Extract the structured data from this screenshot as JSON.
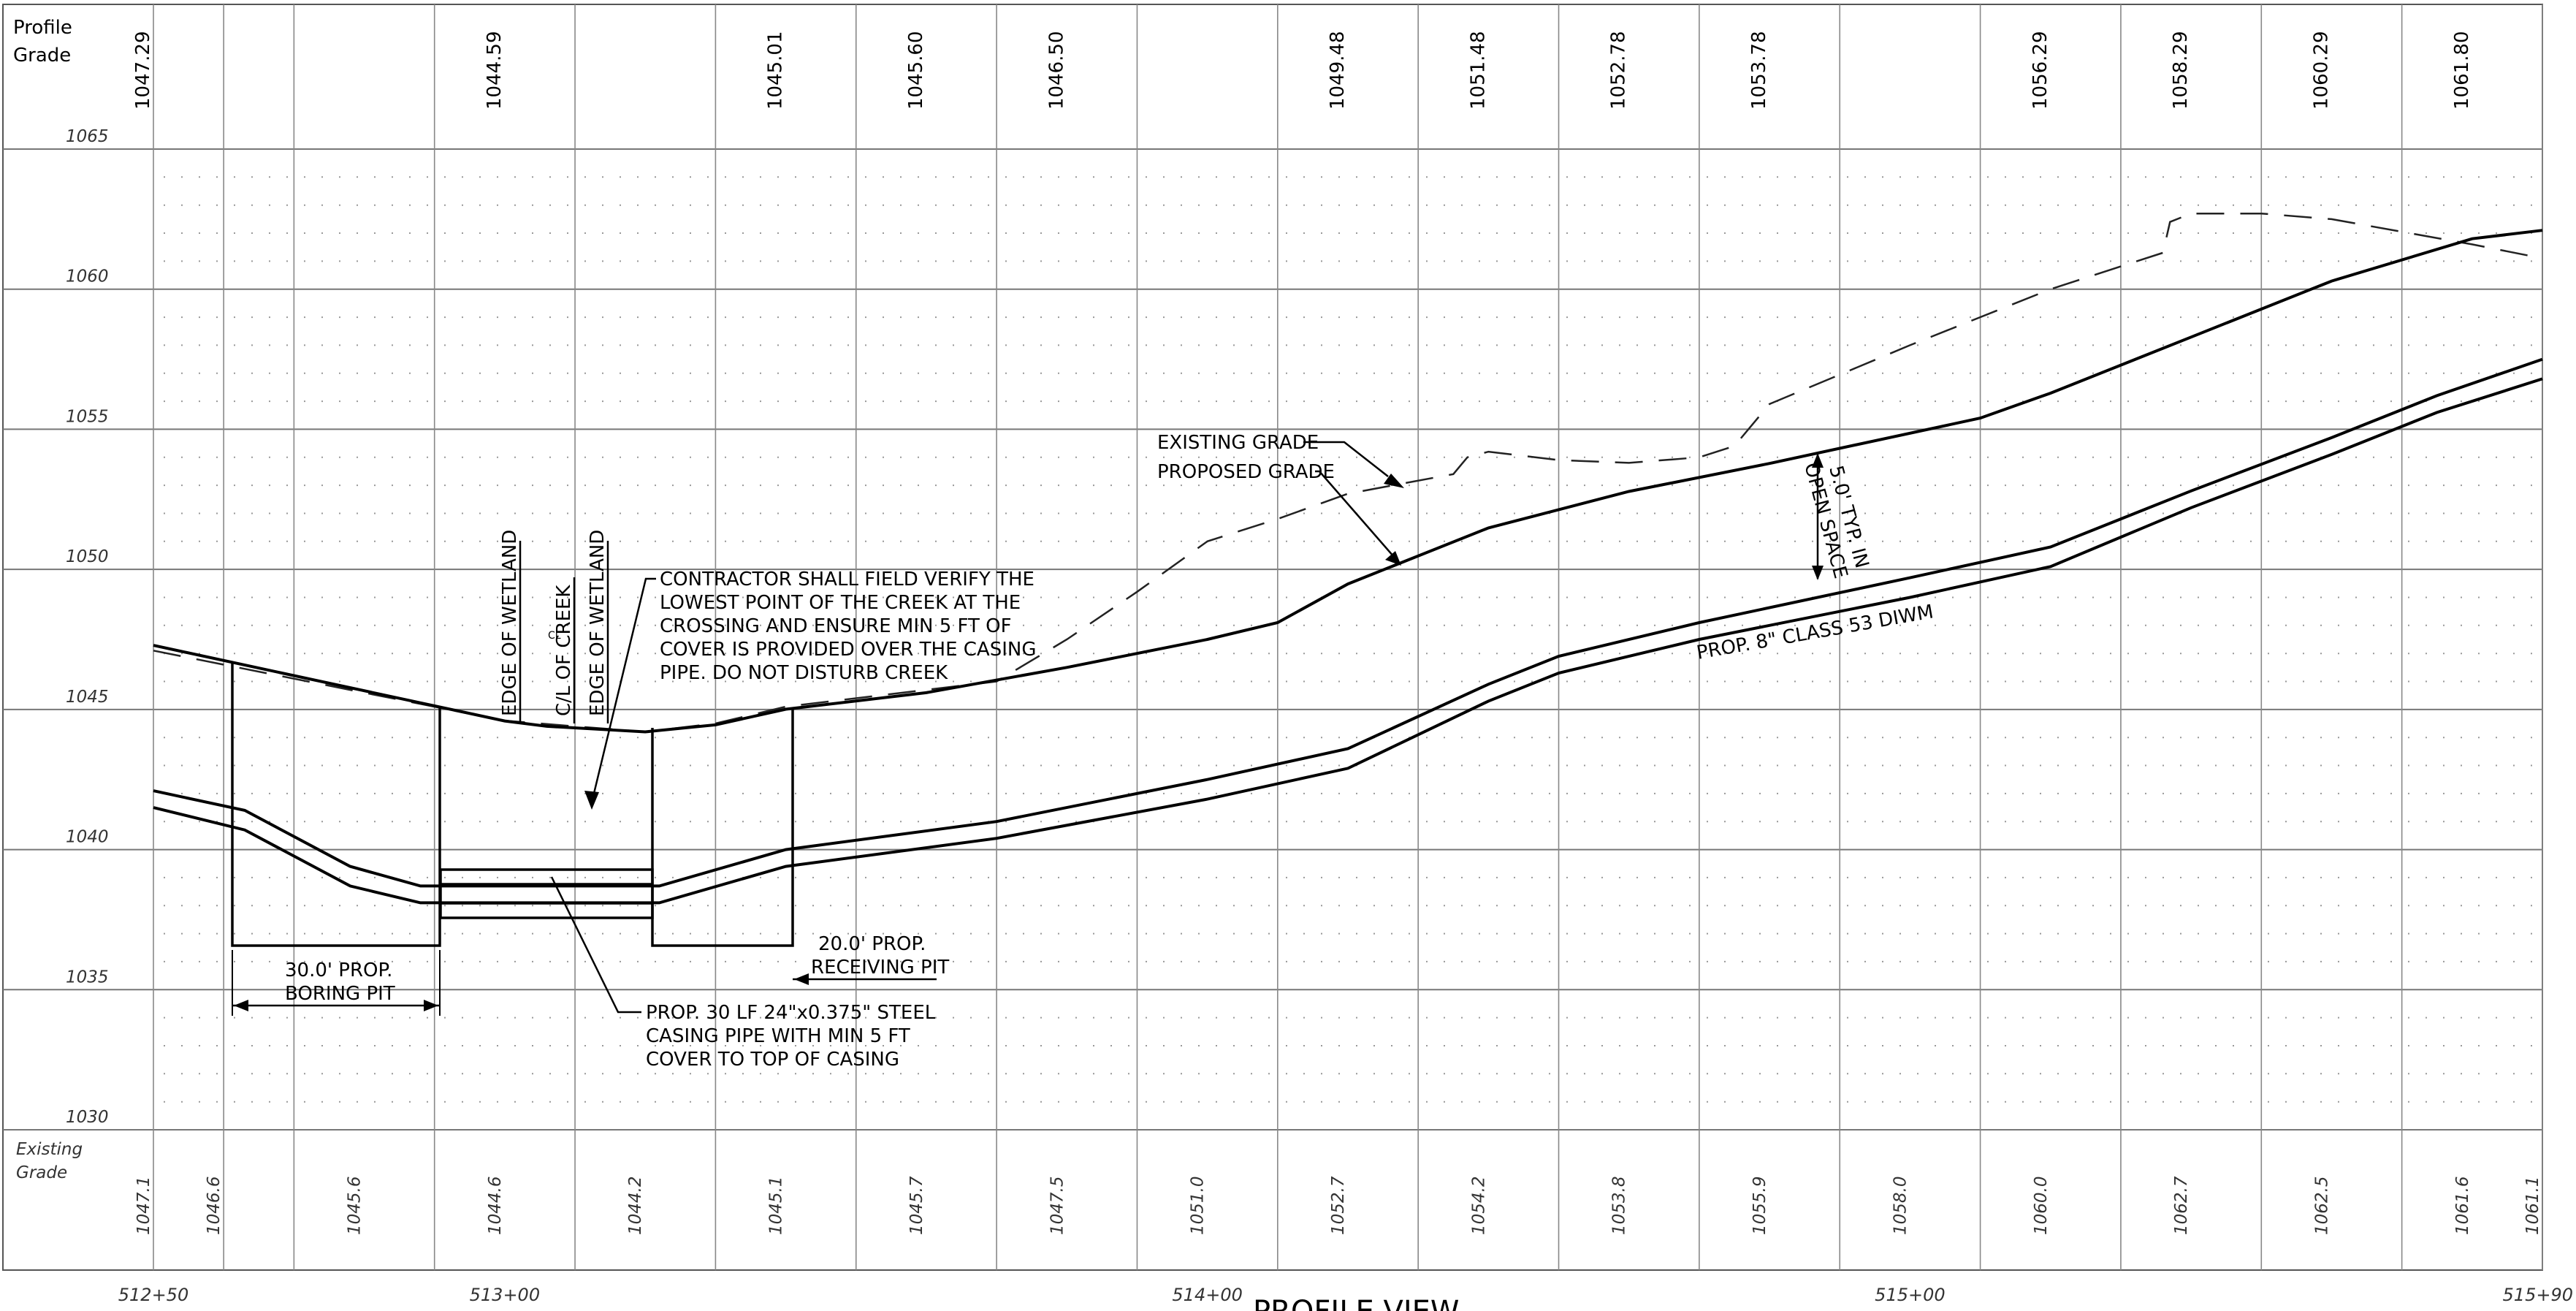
{
  "labels": {
    "profile_grade": [
      "Profile",
      "Grade"
    ],
    "existing_grade": [
      "Existing",
      "Grade"
    ],
    "view_title": "PROFILE VIEW"
  },
  "elevation_axis": {
    "ticks": [
      "1065",
      "1060",
      "1055",
      "1050",
      "1045",
      "1040",
      "1035",
      "1030"
    ],
    "range": [
      1030,
      1065
    ],
    "interval": 5
  },
  "stations": {
    "labels": [
      "512+50",
      "513+00",
      "514+00",
      "515+00",
      "515+90"
    ],
    "values": [
      51250,
      51300,
      51400,
      51500,
      51590
    ],
    "range": [
      51250,
      51590
    ]
  },
  "profile_grade_values": [
    {
      "station": 51250,
      "value": "1047.29"
    },
    {
      "station": 51300,
      "value": "1044.59"
    },
    {
      "station": 51340,
      "value": "1045.01"
    },
    {
      "station": 51360,
      "value": "1045.60"
    },
    {
      "station": 51380,
      "value": "1046.50"
    },
    {
      "station": 51420,
      "value": "1049.48"
    },
    {
      "station": 51440,
      "value": "1051.48"
    },
    {
      "station": 51460,
      "value": "1052.78"
    },
    {
      "station": 51480,
      "value": "1053.78"
    },
    {
      "station": 51520,
      "value": "1056.29"
    },
    {
      "station": 51540,
      "value": "1058.29"
    },
    {
      "station": 51560,
      "value": "1060.29"
    },
    {
      "station": 51580,
      "value": "1061.80"
    }
  ],
  "existing_grade_values": [
    {
      "station": 51250,
      "value": "1047.1"
    },
    {
      "station": 51260,
      "value": "1046.6"
    },
    {
      "station": 51280,
      "value": "1045.6"
    },
    {
      "station": 51300,
      "value": "1044.6"
    },
    {
      "station": 51320,
      "value": "1044.2"
    },
    {
      "station": 51340,
      "value": "1045.1"
    },
    {
      "station": 51360,
      "value": "1045.7"
    },
    {
      "station": 51380,
      "value": "1047.5"
    },
    {
      "station": 51400,
      "value": "1051.0"
    },
    {
      "station": 51420,
      "value": "1052.7"
    },
    {
      "station": 51440,
      "value": "1054.2"
    },
    {
      "station": 51460,
      "value": "1053.8"
    },
    {
      "station": 51480,
      "value": "1055.9"
    },
    {
      "station": 51500,
      "value": "1058.0"
    },
    {
      "station": 51520,
      "value": "1060.0"
    },
    {
      "station": 51540,
      "value": "1062.7"
    },
    {
      "station": 51560,
      "value": "1062.5"
    },
    {
      "station": 51580,
      "value": "1061.6"
    },
    {
      "station": 51590,
      "value": "1061.1"
    }
  ],
  "annotations": {
    "edge_of_wetland": "EDGE OF WETLAND",
    "cl_of_creek": "C/L OF CREEK",
    "edge_of_wetland_2": "EDGE OF WETLAND",
    "contractor_note": [
      "CONTRACTOR SHALL FIELD VERIFY THE",
      "LOWEST POINT OF THE CREEK AT THE",
      "CROSSING AND ENSURE MIN 5 FT OF",
      "COVER IS PROVIDED OVER THE CASING",
      "PIPE. DO NOT DISTURB CREEK"
    ],
    "existing_grade": "EXISTING GRADE",
    "proposed_grade": "PROPOSED GRADE",
    "open_space": [
      "5.0' TYP. IN",
      "OPEN SPACE"
    ],
    "pipe": "PROP. 8\" CLASS 53 DIWM",
    "boring_pit": [
      "30.0' PROP.",
      "BORING PIT"
    ],
    "receiving_pit": [
      "20.0' PROP.",
      "RECEIVING PIT"
    ],
    "casing": [
      "PROP. 30 LF 24\"x0.375\" STEEL",
      "CASING PIPE WITH MIN 5 FT",
      "COVER TO TOP OF CASING"
    ]
  },
  "profiles": {
    "existing_grade": [
      [
        51250,
        1047.1
      ],
      [
        51260,
        1046.6
      ],
      [
        51280,
        1045.6
      ],
      [
        51300,
        1044.6
      ],
      [
        51310,
        1044.4
      ],
      [
        51320,
        1044.2
      ],
      [
        51330,
        1044.5
      ],
      [
        51340,
        1045.1
      ],
      [
        51360,
        1045.7
      ],
      [
        51370,
        1046.0
      ],
      [
        51380,
        1047.5
      ],
      [
        51390,
        1049.2
      ],
      [
        51400,
        1051.0
      ],
      [
        51410,
        1051.8
      ],
      [
        51420,
        1052.7
      ],
      [
        51435,
        1053.4
      ],
      [
        51437,
        1054.0
      ],
      [
        51440,
        1054.2
      ],
      [
        51450,
        1053.9
      ],
      [
        51460,
        1053.8
      ],
      [
        51470,
        1054.0
      ],
      [
        51475,
        1054.4
      ],
      [
        51480,
        1055.9
      ],
      [
        51500,
        1058.0
      ],
      [
        51520,
        1060.0
      ],
      [
        51536,
        1061.3
      ],
      [
        51537,
        1062.4
      ],
      [
        51540,
        1062.7
      ],
      [
        51550,
        1062.7
      ],
      [
        51560,
        1062.5
      ],
      [
        51580,
        1061.6
      ],
      [
        51590,
        1061.1
      ]
    ],
    "proposed_grade": [
      [
        51250,
        1047.29
      ],
      [
        51300,
        1044.59
      ],
      [
        51306,
        1044.4
      ],
      [
        51320,
        1044.2
      ],
      [
        51330,
        1044.45
      ],
      [
        51340,
        1045.01
      ],
      [
        51360,
        1045.6
      ],
      [
        51380,
        1046.5
      ],
      [
        51400,
        1047.5
      ],
      [
        51410,
        1048.1
      ],
      [
        51420,
        1049.48
      ],
      [
        51440,
        1051.48
      ],
      [
        51460,
        1052.78
      ],
      [
        51480,
        1053.78
      ],
      [
        51510,
        1055.4
      ],
      [
        51520,
        1056.29
      ],
      [
        51540,
        1058.29
      ],
      [
        51560,
        1060.29
      ],
      [
        51580,
        1061.8
      ],
      [
        51590,
        1062.1
      ]
    ],
    "pipe_top": [
      [
        51250,
        1042.1
      ],
      [
        51263,
        1041.4
      ],
      [
        51278,
        1039.4
      ],
      [
        51288,
        1038.7
      ],
      [
        51322,
        1038.7
      ],
      [
        51340,
        1040.0
      ],
      [
        51370,
        1041.0
      ],
      [
        51400,
        1042.5
      ],
      [
        51420,
        1043.6
      ],
      [
        51440,
        1045.9
      ],
      [
        51450,
        1046.9
      ],
      [
        51470,
        1048.1
      ],
      [
        51500,
        1049.7
      ],
      [
        51520,
        1050.8
      ],
      [
        51540,
        1052.8
      ],
      [
        51560,
        1054.7
      ],
      [
        51575,
        1056.2
      ],
      [
        51590,
        1057.5
      ]
    ],
    "pipe_bottom": [
      [
        51250,
        1041.5
      ],
      [
        51263,
        1040.7
      ],
      [
        51278,
        1038.7
      ],
      [
        51288,
        1038.1
      ],
      [
        51322,
        1038.1
      ],
      [
        51340,
        1039.4
      ],
      [
        51370,
        1040.4
      ],
      [
        51400,
        1041.8
      ],
      [
        51420,
        1042.9
      ],
      [
        51440,
        1045.3
      ],
      [
        51450,
        1046.3
      ],
      [
        51470,
        1047.5
      ],
      [
        51500,
        1049.0
      ],
      [
        51520,
        1050.1
      ],
      [
        51540,
        1052.2
      ],
      [
        51560,
        1054.1
      ],
      [
        51575,
        1055.6
      ],
      [
        51590,
        1056.8
      ]
    ]
  }
}
